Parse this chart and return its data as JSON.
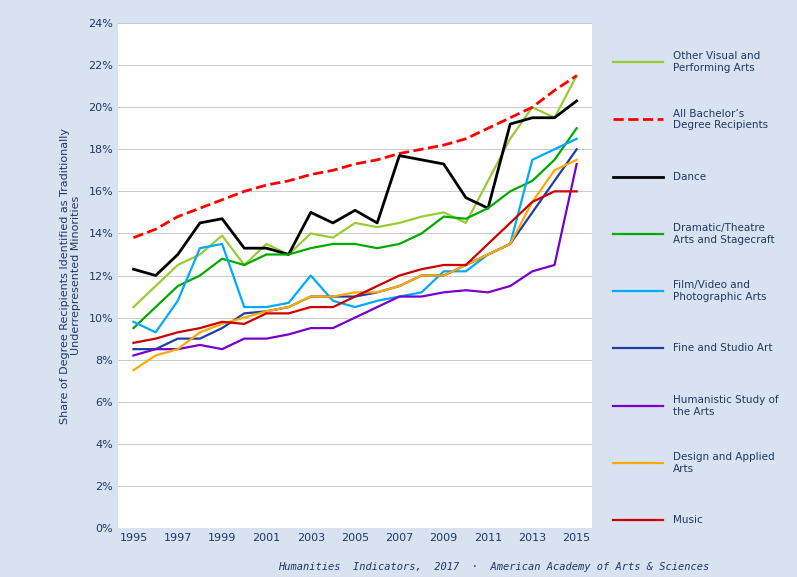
{
  "years": [
    1995,
    1996,
    1997,
    1998,
    1999,
    2000,
    2001,
    2002,
    2003,
    2004,
    2005,
    2006,
    2007,
    2008,
    2009,
    2010,
    2011,
    2012,
    2013,
    2014,
    2015
  ],
  "series": {
    "Other Visual and Performing Arts": {
      "color": "#99cc33",
      "linestyle": "-",
      "linewidth": 1.6,
      "values": [
        10.5,
        11.5,
        12.5,
        13.0,
        13.9,
        12.5,
        13.5,
        13.0,
        14.0,
        13.8,
        14.5,
        14.3,
        14.5,
        14.8,
        15.0,
        14.5,
        16.5,
        18.5,
        20.0,
        19.5,
        21.5
      ]
    },
    "All Bachelors Degree Recipients": {
      "color": "#ff0000",
      "linestyle": "--",
      "linewidth": 2.0,
      "values": [
        13.8,
        14.2,
        14.8,
        15.2,
        15.6,
        16.0,
        16.3,
        16.5,
        16.8,
        17.0,
        17.3,
        17.5,
        17.8,
        18.0,
        18.2,
        18.5,
        19.0,
        19.5,
        20.0,
        20.8,
        21.5
      ]
    },
    "Dance": {
      "color": "#000000",
      "linestyle": "-",
      "linewidth": 2.0,
      "values": [
        12.3,
        12.0,
        13.0,
        14.5,
        14.7,
        13.3,
        13.3,
        13.0,
        15.0,
        14.5,
        15.1,
        14.5,
        17.7,
        17.5,
        17.3,
        15.7,
        15.2,
        19.2,
        19.5,
        19.5,
        20.3
      ]
    },
    "Dramatic Theatre Arts and Stagecraft": {
      "color": "#00aa00",
      "linestyle": "-",
      "linewidth": 1.6,
      "values": [
        9.5,
        10.5,
        11.5,
        12.0,
        12.8,
        12.5,
        13.0,
        13.0,
        13.3,
        13.5,
        13.5,
        13.3,
        13.5,
        14.0,
        14.8,
        14.7,
        15.2,
        16.0,
        16.5,
        17.5,
        19.0
      ]
    },
    "Film/Video and Photographic Arts": {
      "color": "#00aaff",
      "linestyle": "-",
      "linewidth": 1.6,
      "values": [
        9.8,
        9.3,
        10.8,
        13.3,
        13.5,
        10.5,
        10.5,
        10.7,
        12.0,
        10.8,
        10.5,
        10.8,
        11.0,
        11.2,
        12.2,
        12.2,
        13.0,
        13.5,
        17.5,
        18.0,
        18.5
      ]
    },
    "Fine and Studio Art": {
      "color": "#1f3daa",
      "linestyle": "-",
      "linewidth": 1.6,
      "values": [
        8.5,
        8.5,
        9.0,
        9.0,
        9.5,
        10.2,
        10.3,
        10.5,
        11.0,
        11.0,
        11.0,
        11.2,
        11.5,
        12.0,
        12.0,
        12.5,
        13.0,
        13.5,
        15.0,
        16.5,
        18.0
      ]
    },
    "Humanistic Study of the Arts": {
      "color": "#7700cc",
      "linestyle": "-",
      "linewidth": 1.6,
      "values": [
        8.2,
        8.5,
        8.5,
        8.7,
        8.5,
        9.0,
        9.0,
        9.2,
        9.5,
        9.5,
        10.0,
        10.5,
        11.0,
        11.0,
        11.2,
        11.3,
        11.2,
        11.5,
        12.2,
        12.5,
        17.3
      ]
    },
    "Design and Applied Arts": {
      "color": "#ffaa00",
      "linestyle": "-",
      "linewidth": 1.6,
      "values": [
        7.5,
        8.2,
        8.5,
        9.3,
        9.7,
        10.0,
        10.3,
        10.5,
        11.0,
        11.0,
        11.2,
        11.2,
        11.5,
        12.0,
        12.0,
        12.5,
        13.0,
        13.5,
        15.5,
        17.0,
        17.5
      ]
    },
    "Music": {
      "color": "#cc0000",
      "linestyle": "-",
      "linewidth": 1.6,
      "values": [
        8.8,
        9.0,
        9.3,
        9.5,
        9.8,
        9.7,
        10.2,
        10.2,
        10.5,
        10.5,
        11.0,
        11.5,
        12.0,
        12.3,
        12.5,
        12.5,
        13.5,
        14.5,
        15.5,
        16.0,
        16.0
      ]
    }
  },
  "ylabel": "Share of Degree Recipients Identified as Traditionally\nUnderrepresented Minorities",
  "ylim": [
    0,
    0.24
  ],
  "background_color": "#d9e2f0",
  "plot_background": "#ffffff",
  "legend_box_color": "#ffffff",
  "footer": "Humanities  Indicators,  2017  ·  American Academy of Arts & Sciences",
  "legend_order": [
    "Other Visual and Performing Arts",
    "All Bachelors Degree Recipients",
    "Dance",
    "Dramatic Theatre Arts and Stagecraft",
    "Film/Video and Photographic Arts",
    "Fine and Studio Art",
    "Humanistic Study of the Arts",
    "Design and Applied Arts",
    "Music"
  ],
  "legend_labels": {
    "Other Visual and Performing Arts": "Other Visual and\nPerforming Arts",
    "All Bachelors Degree Recipients": "All Bachelor’s\nDegree Recipients",
    "Dance": "Dance",
    "Dramatic Theatre Arts and Stagecraft": "Dramatic/Theatre\nArts and Stagecraft",
    "Film/Video and Photographic Arts": "Film/Video and\nPhotographic Arts",
    "Fine and Studio Art": "Fine and Studio Art",
    "Humanistic Study of the Arts": "Humanistic Study of\nthe Arts",
    "Design and Applied Arts": "Design and Applied\nArts",
    "Music": "Music"
  }
}
